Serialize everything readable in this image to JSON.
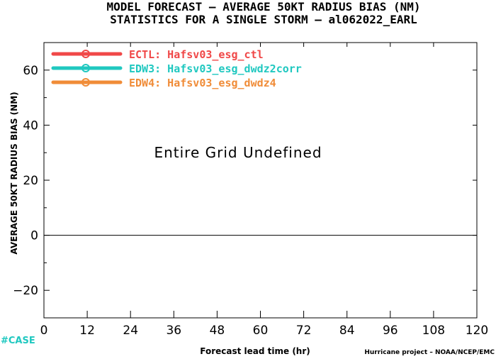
{
  "chart_data": {
    "type": "line",
    "title": "MODEL FORECAST – AVERAGE 50KT RADIUS BIAS (NM)",
    "subtitle": "STATISTICS FOR A SINGLE STORM – al062022_EARL",
    "xlabel": "Forecast lead time (hr)",
    "ylabel": "AVERAGE 50KT RADIUS BIAS (NM)",
    "xlim": [
      0,
      120
    ],
    "ylim": [
      -30,
      70
    ],
    "x_ticks": [
      0,
      12,
      24,
      36,
      48,
      60,
      72,
      84,
      96,
      108,
      120
    ],
    "y_ticks": [
      -20,
      0,
      20,
      40,
      60
    ],
    "zero_line": 0,
    "grid": false,
    "legend_position": "top-left",
    "annotation": "Entire Grid Undefined",
    "series": [
      {
        "name": "ECTL: Hafsv03_esg_ctl",
        "color": "#f04848",
        "values": []
      },
      {
        "name": "EDW3: Hafsv03_esg_dwdz2corr",
        "color": "#20c8c0",
        "values": []
      },
      {
        "name": "EDW4: Hafsv03_esg_dwdz4",
        "color": "#f08c38",
        "values": []
      }
    ]
  },
  "footer": {
    "case_label": "#CASE",
    "case_color": "#20c8c0",
    "credit": "Hurricane project – NOAA/NCEP/EMC"
  }
}
